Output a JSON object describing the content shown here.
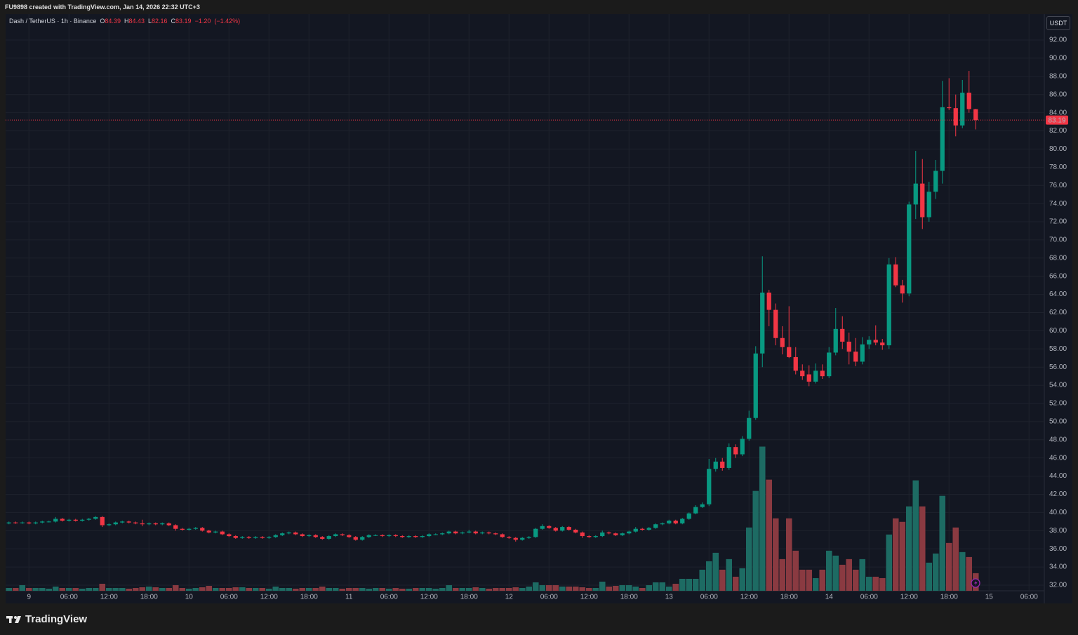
{
  "header": {
    "credit": "FU9898 created with TradingView.com, Jan 14, 2026 22:32 UTC+3"
  },
  "footer": {
    "brand": "TradingView"
  },
  "chart_data": {
    "type": "candlestick",
    "title": "Dash / TetherUS · 1h · Binance",
    "legend": {
      "open": "O",
      "high": "H",
      "low": "L",
      "close": "C",
      "change": {
        "value": -1.2,
        "label": "−1.20"
      },
      "change_percent": {
        "value": -1.42,
        "label": "(−1.42%)"
      }
    },
    "currency": "USDT",
    "up_color": "#089981",
    "down_color": "#f23645",
    "volume_up_color": "#1d6b63",
    "volume_down_color": "#8a3a41",
    "grid": true,
    "ylim": [
      31.38,
      94.86
    ],
    "y2lim": [
      0,
      820
    ],
    "yticks": [
      {
        "value": 32,
        "label": "32.00"
      },
      {
        "value": 34,
        "label": "34.00"
      },
      {
        "value": 36,
        "label": "36.00"
      },
      {
        "value": 38,
        "label": "38.00"
      },
      {
        "value": 40,
        "label": "40.00"
      },
      {
        "value": 42,
        "label": "42.00"
      },
      {
        "value": 44,
        "label": "44.00"
      },
      {
        "value": 46,
        "label": "46.00"
      },
      {
        "value": 48,
        "label": "48.00"
      },
      {
        "value": 50,
        "label": "50.00"
      },
      {
        "value": 52,
        "label": "52.00"
      },
      {
        "value": 54,
        "label": "54.00"
      },
      {
        "value": 56,
        "label": "56.00"
      },
      {
        "value": 58,
        "label": "58.00"
      },
      {
        "value": 60,
        "label": "60.00"
      },
      {
        "value": 62,
        "label": "62.00"
      },
      {
        "value": 64,
        "label": "64.00"
      },
      {
        "value": 66,
        "label": "66.00"
      },
      {
        "value": 68,
        "label": "68.00"
      },
      {
        "value": 70,
        "label": "70.00"
      },
      {
        "value": 72,
        "label": "72.00"
      },
      {
        "value": 74,
        "label": "74.00"
      },
      {
        "value": 76,
        "label": "76.00"
      },
      {
        "value": 78,
        "label": "78.00"
      },
      {
        "value": 80,
        "label": "80.00"
      },
      {
        "value": 82,
        "label": "82.00"
      },
      {
        "value": 84,
        "label": "84.00"
      },
      {
        "value": 86,
        "label": "86.00"
      },
      {
        "value": 88,
        "label": "88.00"
      },
      {
        "value": 90,
        "label": "90.00"
      },
      {
        "value": 92,
        "label": "92.00"
      }
    ],
    "categories": [
      null,
      null,
      null,
      "9",
      null,
      null,
      null,
      null,
      null,
      "06:00",
      null,
      null,
      null,
      null,
      null,
      "12:00",
      null,
      null,
      null,
      null,
      null,
      "18:00",
      null,
      null,
      null,
      null,
      null,
      "10",
      null,
      null,
      null,
      null,
      null,
      "06:00",
      null,
      null,
      null,
      null,
      null,
      "12:00",
      null,
      null,
      null,
      null,
      null,
      "18:00",
      null,
      null,
      null,
      null,
      null,
      "11",
      null,
      null,
      null,
      null,
      null,
      "06:00",
      null,
      null,
      null,
      null,
      null,
      "12:00",
      null,
      null,
      null,
      null,
      null,
      "18:00",
      null,
      null,
      null,
      null,
      null,
      "12",
      null,
      null,
      null,
      null,
      null,
      "06:00",
      null,
      null,
      null,
      null,
      null,
      "12:00",
      null,
      null,
      null,
      null,
      null,
      "18:00",
      null,
      null,
      null,
      null,
      null,
      "13",
      null,
      null,
      null,
      null,
      null,
      "06:00",
      null,
      null,
      null,
      null,
      null,
      "12:00",
      null,
      null,
      null,
      null,
      null,
      "18:00",
      null,
      null,
      null,
      null,
      null,
      "14",
      null,
      null,
      null,
      null,
      null,
      "06:00",
      null,
      null,
      null,
      null,
      null,
      "12:00",
      null,
      null,
      null,
      null,
      null,
      "18:00",
      null,
      null,
      null,
      null,
      null,
      "15",
      null,
      null,
      null,
      null,
      null,
      "06:00"
    ],
    "open": [
      38.8,
      38.9,
      38.85,
      38.9,
      38.8,
      38.9,
      39.0,
      39.0,
      39.3,
      39.1,
      39.2,
      39.1,
      39.2,
      39.3,
      39.5,
      38.6,
      38.7,
      38.9,
      39.0,
      38.9,
      38.8,
      38.7,
      38.8,
      38.7,
      38.8,
      38.6,
      38.2,
      38.1,
      38.2,
      38.3,
      38.0,
      37.8,
      37.9,
      37.6,
      37.4,
      37.2,
      37.3,
      37.2,
      37.3,
      37.2,
      37.3,
      37.5,
      37.7,
      37.8,
      37.6,
      37.4,
      37.5,
      37.3,
      37.1,
      37.4,
      37.6,
      37.5,
      37.3,
      37.0,
      37.3,
      37.5,
      37.5,
      37.4,
      37.5,
      37.4,
      37.3,
      37.4,
      37.3,
      37.4,
      37.6,
      37.6,
      37.7,
      37.9,
      37.7,
      37.8,
      37.9,
      37.7,
      37.8,
      37.7,
      37.6,
      37.3,
      37.2,
      37.0,
      37.2,
      37.3,
      38.2,
      38.5,
      38.3,
      38.0,
      38.4,
      38.1,
      37.8,
      37.4,
      37.3,
      37.4,
      37.8,
      37.7,
      37.5,
      37.7,
      37.9,
      38.2,
      38.1,
      38.3,
      38.7,
      38.8,
      39.1,
      38.8,
      39.3,
      39.9,
      40.6,
      40.9,
      44.8,
      45.6,
      44.9,
      47.2,
      46.4,
      48.1,
      50.4,
      57.5,
      64.2,
      62.3,
      59.2,
      58.2,
      57.1,
      55.6,
      55.2,
      54.4,
      55.6,
      55.0,
      57.6,
      60.2,
      58.8,
      57.7,
      56.6,
      58.5,
      59.0,
      58.7,
      58.4,
      67.3,
      65.0,
      64.1,
      73.9,
      76.2,
      72.5,
      75.3,
      77.6,
      84.6,
      84.5,
      82.6,
      86.2,
      84.39,
      null,
      null,
      null,
      null,
      null,
      null,
      null,
      null
    ],
    "high": [
      39.0,
      39.0,
      39.0,
      39.0,
      39.0,
      39.1,
      39.1,
      39.5,
      39.4,
      39.3,
      39.3,
      39.3,
      39.4,
      39.6,
      39.6,
      38.8,
      39.0,
      39.1,
      39.1,
      39.0,
      39.2,
      38.9,
      38.9,
      38.9,
      38.9,
      38.7,
      38.3,
      38.3,
      38.4,
      38.4,
      38.1,
      38.0,
      38.0,
      37.7,
      37.5,
      37.4,
      37.4,
      37.4,
      37.4,
      37.4,
      37.6,
      37.8,
      37.9,
      37.9,
      37.7,
      37.6,
      37.6,
      37.4,
      37.5,
      37.7,
      37.7,
      37.6,
      37.4,
      37.4,
      37.6,
      37.6,
      37.6,
      37.6,
      37.6,
      37.5,
      37.5,
      37.5,
      37.5,
      37.7,
      37.7,
      37.8,
      38.0,
      38.0,
      37.9,
      38.1,
      38.0,
      37.9,
      37.9,
      37.8,
      37.7,
      37.4,
      37.3,
      37.3,
      37.4,
      38.3,
      38.7,
      38.6,
      38.4,
      38.5,
      38.5,
      38.2,
      37.9,
      37.5,
      37.5,
      38.0,
      37.9,
      37.8,
      37.8,
      38.0,
      38.4,
      38.3,
      38.4,
      38.8,
      38.9,
      39.2,
      39.2,
      39.4,
      40.0,
      40.8,
      41.1,
      45.9,
      46.0,
      46.0,
      47.6,
      47.5,
      48.4,
      51.2,
      58.3,
      68.2,
      64.5,
      63.0,
      60.5,
      62.7,
      58.2,
      56.3,
      56.2,
      56.4,
      56.3,
      58.2,
      62.5,
      61.6,
      59.8,
      59.2,
      59.3,
      59.4,
      60.6,
      59.1,
      68.0,
      68.1,
      65.6,
      74.2,
      79.8,
      78.9,
      76.4,
      78.8,
      87.5,
      87.8,
      86.0,
      87.6,
      88.6,
      84.43,
      null,
      null,
      null,
      null,
      null,
      null,
      null,
      null
    ],
    "low": [
      38.7,
      38.75,
      38.75,
      38.7,
      38.7,
      38.8,
      38.9,
      38.9,
      39.0,
      39.0,
      39.0,
      39.0,
      39.1,
      39.2,
      38.4,
      38.5,
      38.6,
      38.8,
      38.8,
      38.7,
      38.5,
      38.6,
      38.6,
      38.6,
      38.5,
      38.0,
      38.0,
      38.0,
      38.1,
      37.9,
      37.7,
      37.7,
      37.5,
      37.3,
      37.1,
      37.1,
      37.1,
      37.1,
      37.1,
      37.1,
      37.2,
      37.4,
      37.6,
      37.5,
      37.3,
      37.3,
      37.2,
      37.0,
      37.0,
      37.3,
      37.4,
      37.2,
      36.9,
      36.9,
      37.2,
      37.4,
      37.3,
      37.3,
      37.3,
      37.2,
      37.2,
      37.2,
      37.2,
      37.3,
      37.5,
      37.5,
      37.6,
      37.6,
      37.6,
      37.7,
      37.6,
      37.6,
      37.6,
      37.5,
      37.2,
      37.1,
      36.8,
      36.9,
      37.1,
      37.2,
      38.1,
      38.2,
      37.9,
      37.9,
      38.0,
      37.7,
      37.2,
      37.2,
      37.2,
      37.3,
      37.6,
      37.4,
      37.4,
      37.6,
      37.8,
      38.0,
      38.0,
      38.2,
      38.6,
      38.7,
      38.7,
      38.7,
      39.2,
      39.8,
      40.5,
      40.7,
      44.5,
      44.6,
      44.7,
      46.0,
      46.2,
      47.9,
      50.2,
      56.0,
      60.5,
      58.4,
      57.4,
      57.0,
      55.2,
      54.6,
      53.9,
      54.2,
      54.7,
      54.8,
      57.3,
      58.0,
      56.3,
      56.1,
      56.3,
      58.0,
      58.4,
      57.9,
      58.0,
      64.8,
      63.1,
      63.8,
      72.3,
      71.2,
      72.0,
      74.5,
      76.2,
      84.3,
      81.4,
      82.3,
      84.0,
      82.16,
      null,
      null,
      null,
      null,
      null,
      null,
      null,
      null
    ],
    "close": [
      38.9,
      38.85,
      38.9,
      38.8,
      38.9,
      39.0,
      39.0,
      39.3,
      39.1,
      39.2,
      39.1,
      39.2,
      39.3,
      39.5,
      38.6,
      38.7,
      38.9,
      39.0,
      38.9,
      38.8,
      38.7,
      38.8,
      38.7,
      38.8,
      38.6,
      38.2,
      38.1,
      38.2,
      38.3,
      38.0,
      37.8,
      37.9,
      37.6,
      37.4,
      37.2,
      37.3,
      37.2,
      37.3,
      37.2,
      37.3,
      37.5,
      37.7,
      37.8,
      37.6,
      37.4,
      37.5,
      37.3,
      37.1,
      37.4,
      37.6,
      37.5,
      37.3,
      37.0,
      37.3,
      37.5,
      37.5,
      37.4,
      37.5,
      37.4,
      37.3,
      37.4,
      37.3,
      37.4,
      37.6,
      37.6,
      37.7,
      37.9,
      37.7,
      37.8,
      37.9,
      37.7,
      37.8,
      37.7,
      37.6,
      37.3,
      37.2,
      37.0,
      37.2,
      37.3,
      38.2,
      38.5,
      38.3,
      38.0,
      38.4,
      38.1,
      37.8,
      37.4,
      37.3,
      37.4,
      37.8,
      37.7,
      37.5,
      37.7,
      37.9,
      38.2,
      38.1,
      38.3,
      38.7,
      38.8,
      39.1,
      38.8,
      39.3,
      39.9,
      40.6,
      40.9,
      44.8,
      45.6,
      44.9,
      47.2,
      46.4,
      48.1,
      50.4,
      57.5,
      64.2,
      62.3,
      59.2,
      58.2,
      57.1,
      55.6,
      55.0,
      54.4,
      55.6,
      55.0,
      57.6,
      60.2,
      58.8,
      57.7,
      56.6,
      58.5,
      59.0,
      58.7,
      58.4,
      67.3,
      65.0,
      64.1,
      73.9,
      76.2,
      72.5,
      75.3,
      77.6,
      84.6,
      84.5,
      82.6,
      86.2,
      84.4,
      83.19,
      null,
      null,
      null,
      null,
      null,
      null,
      null,
      null
    ],
    "volume": [
      4,
      4,
      8,
      4,
      4,
      4,
      3,
      6,
      4,
      4,
      4,
      3,
      4,
      4,
      10,
      4,
      4,
      4,
      3,
      4,
      5,
      6,
      5,
      4,
      4,
      8,
      4,
      3,
      4,
      5,
      7,
      4,
      4,
      4,
      5,
      5,
      4,
      4,
      4,
      3,
      6,
      4,
      4,
      3,
      4,
      4,
      4,
      6,
      4,
      4,
      3,
      4,
      4,
      4,
      3,
      4,
      4,
      3,
      4,
      3,
      3,
      4,
      4,
      4,
      3,
      4,
      8,
      4,
      4,
      4,
      5,
      4,
      3,
      4,
      4,
      4,
      5,
      4,
      6,
      12,
      8,
      8,
      8,
      6,
      6,
      6,
      5,
      4,
      4,
      13,
      6,
      7,
      8,
      8,
      6,
      4,
      8,
      12,
      12,
      6,
      10,
      17,
      17,
      17,
      30,
      42,
      54,
      30,
      45,
      20,
      32,
      90,
      142,
      205,
      158,
      103,
      45,
      103,
      57,
      30,
      30,
      18,
      30,
      57,
      50,
      37,
      45,
      30,
      45,
      20,
      20,
      18,
      80,
      103,
      98,
      120,
      157,
      120,
      40,
      53,
      135,
      68,
      90,
      55,
      48,
      25,
      null,
      null,
      null,
      null,
      null,
      null,
      null,
      null
    ]
  }
}
